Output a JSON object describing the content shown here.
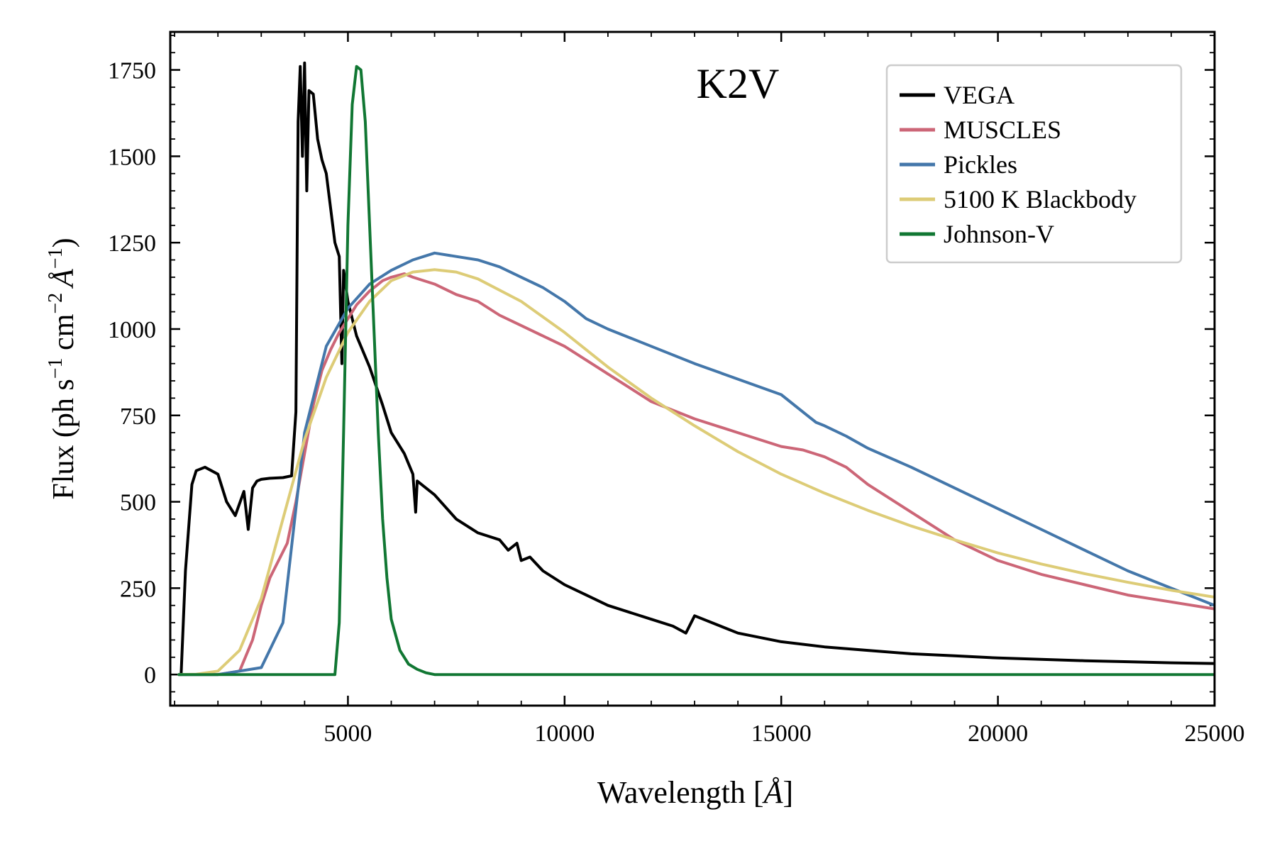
{
  "chart_data": {
    "type": "line",
    "annotation": "K2V",
    "xlabel_main": "Wavelength [",
    "xlabel_unit": "Å",
    "xlabel_close": "]",
    "ylabel_prefix": "Flux (ph s",
    "ylabel_sup1": "−1",
    "ylabel_cm": " cm",
    "ylabel_sup2": "−2",
    "ylabel_unit": "Å",
    "ylabel_sup3": "−1",
    "ylabel_close": ")",
    "xlim": [
      900,
      25000
    ],
    "ylim": [
      -90,
      1860
    ],
    "xticks": [
      5000,
      10000,
      15000,
      20000,
      25000
    ],
    "yticks": [
      0,
      250,
      500,
      750,
      1000,
      1250,
      1500,
      1750
    ],
    "legend_position": "top-right",
    "grid": false,
    "series": [
      {
        "name": "VEGA",
        "color": "#000000",
        "x": [
          1100,
          1150,
          1250,
          1400,
          1500,
          1700,
          2000,
          2200,
          2400,
          2600,
          2700,
          2800,
          2900,
          3000,
          3200,
          3500,
          3700,
          3800,
          3850,
          3900,
          3950,
          4000,
          4050,
          4100,
          4200,
          4300,
          4400,
          4500,
          4700,
          4800,
          4860,
          4900,
          5000,
          5200,
          5500,
          5800,
          6000,
          6300,
          6500,
          6563,
          6600,
          7000,
          7500,
          8000,
          8500,
          8700,
          8900,
          9000,
          9200,
          9500,
          10000,
          10500,
          11000,
          12000,
          12500,
          12800,
          13000,
          14000,
          15000,
          16000,
          17000,
          18000,
          19000,
          20000,
          21000,
          22000,
          23000,
          24000,
          25000
        ],
        "y": [
          0,
          0,
          300,
          550,
          590,
          600,
          580,
          500,
          460,
          530,
          420,
          540,
          560,
          565,
          568,
          570,
          575,
          760,
          1600,
          1760,
          1500,
          1770,
          1400,
          1690,
          1680,
          1550,
          1490,
          1450,
          1250,
          1210,
          900,
          1170,
          1080,
          980,
          890,
          780,
          700,
          640,
          580,
          470,
          560,
          520,
          450,
          410,
          390,
          360,
          380,
          330,
          340,
          300,
          260,
          230,
          200,
          160,
          140,
          120,
          170,
          120,
          95,
          80,
          70,
          60,
          54,
          48,
          44,
          40,
          37,
          34,
          32
        ],
        "values": [
          0,
          0,
          300,
          550,
          590,
          600,
          580,
          500,
          460,
          530,
          420,
          540,
          560,
          565,
          568,
          570,
          575,
          760,
          1600,
          1760,
          1500,
          1770,
          1400,
          1690,
          1680,
          1550,
          1490,
          1450,
          1250,
          1210,
          900,
          1170,
          1080,
          980,
          890,
          780,
          700,
          640,
          580,
          470,
          560,
          520,
          450,
          410,
          390,
          360,
          380,
          330,
          340,
          300,
          260,
          230,
          200,
          160,
          140,
          120,
          170,
          120,
          95,
          80,
          70,
          60,
          54,
          48,
          44,
          40,
          37,
          34,
          32
        ]
      },
      {
        "name": "MUSCLES",
        "color": "#cc6677",
        "x": [
          1100,
          1500,
          2000,
          2500,
          2800,
          3000,
          3200,
          3400,
          3600,
          3800,
          4000,
          4200,
          4400,
          4600,
          4800,
          5000,
          5200,
          5500,
          5800,
          6000,
          6300,
          6500,
          7000,
          7500,
          8000,
          8500,
          9000,
          9500,
          10000,
          11000,
          12000,
          13000,
          14000,
          15000,
          15500,
          16000,
          16500,
          17000,
          18000,
          19000,
          20000,
          21000,
          22000,
          23000,
          24000,
          25000
        ],
        "y": [
          0,
          0,
          0,
          10,
          100,
          200,
          280,
          330,
          380,
          500,
          640,
          780,
          880,
          940,
          990,
          1030,
          1070,
          1110,
          1140,
          1150,
          1160,
          1150,
          1130,
          1100,
          1080,
          1040,
          1010,
          980,
          950,
          870,
          790,
          740,
          700,
          660,
          650,
          630,
          600,
          550,
          470,
          390,
          330,
          290,
          260,
          230,
          210,
          190
        ],
        "values": [
          0,
          0,
          0,
          10,
          100,
          200,
          280,
          330,
          380,
          500,
          640,
          780,
          880,
          940,
          990,
          1030,
          1070,
          1110,
          1140,
          1150,
          1160,
          1150,
          1130,
          1100,
          1080,
          1040,
          1010,
          980,
          950,
          870,
          790,
          740,
          700,
          660,
          650,
          630,
          600,
          550,
          470,
          390,
          330,
          290,
          260,
          230,
          210,
          190
        ]
      },
      {
        "name": "Pickles",
        "color": "#4477aa",
        "x": [
          1100,
          2000,
          3000,
          3500,
          4000,
          4500,
          5000,
          5500,
          6000,
          6500,
          7000,
          7500,
          8000,
          8500,
          9000,
          9500,
          10000,
          10500,
          11000,
          12000,
          13000,
          14000,
          15000,
          15800,
          16000,
          16500,
          17000,
          18000,
          19000,
          20000,
          21000,
          22000,
          23000,
          24000,
          25000
        ],
        "y": [
          0,
          0,
          20,
          150,
          700,
          950,
          1060,
          1130,
          1170,
          1200,
          1220,
          1210,
          1200,
          1180,
          1150,
          1120,
          1080,
          1030,
          1000,
          950,
          900,
          855,
          810,
          730,
          720,
          690,
          655,
          600,
          540,
          480,
          420,
          360,
          300,
          250,
          200
        ],
        "values": [
          0,
          0,
          20,
          150,
          700,
          950,
          1060,
          1130,
          1170,
          1200,
          1220,
          1210,
          1200,
          1180,
          1150,
          1120,
          1080,
          1030,
          1000,
          950,
          900,
          855,
          810,
          730,
          720,
          690,
          655,
          600,
          540,
          480,
          420,
          360,
          300,
          250,
          200
        ]
      },
      {
        "name": "5100 K Blackbody",
        "color": "#ddcc77",
        "x": [
          1100,
          1500,
          2000,
          2500,
          3000,
          3500,
          4000,
          4500,
          5000,
          5500,
          6000,
          6500,
          7000,
          7500,
          8000,
          9000,
          10000,
          11000,
          12000,
          13000,
          14000,
          15000,
          16000,
          17000,
          18000,
          19000,
          20000,
          21000,
          22000,
          23000,
          24000,
          25000
        ],
        "y": [
          0,
          1,
          10,
          70,
          220,
          450,
          680,
          860,
          990,
          1080,
          1140,
          1165,
          1172,
          1165,
          1145,
          1080,
          990,
          890,
          800,
          720,
          645,
          580,
          525,
          475,
          430,
          390,
          352,
          320,
          292,
          267,
          244,
          224
        ],
        "values": [
          0,
          1,
          10,
          70,
          220,
          450,
          680,
          860,
          990,
          1080,
          1140,
          1165,
          1172,
          1165,
          1145,
          1080,
          990,
          890,
          800,
          720,
          645,
          580,
          525,
          475,
          430,
          390,
          352,
          320,
          292,
          267,
          244,
          224
        ]
      },
      {
        "name": "Johnson-V",
        "color": "#117733",
        "x": [
          1100,
          4700,
          4800,
          4900,
          5000,
          5100,
          5200,
          5300,
          5400,
          5500,
          5600,
          5700,
          5800,
          5900,
          6000,
          6200,
          6400,
          6600,
          6800,
          7000,
          10000,
          15000,
          20000,
          25000
        ],
        "y": [
          0,
          0,
          150,
          700,
          1300,
          1650,
          1760,
          1750,
          1600,
          1300,
          1000,
          700,
          450,
          280,
          160,
          70,
          30,
          15,
          5,
          0,
          0,
          0,
          0,
          0
        ],
        "values": [
          0,
          0,
          150,
          700,
          1300,
          1650,
          1760,
          1750,
          1600,
          1300,
          1000,
          700,
          450,
          280,
          160,
          70,
          30,
          15,
          5,
          0,
          0,
          0,
          0,
          0
        ]
      }
    ]
  }
}
